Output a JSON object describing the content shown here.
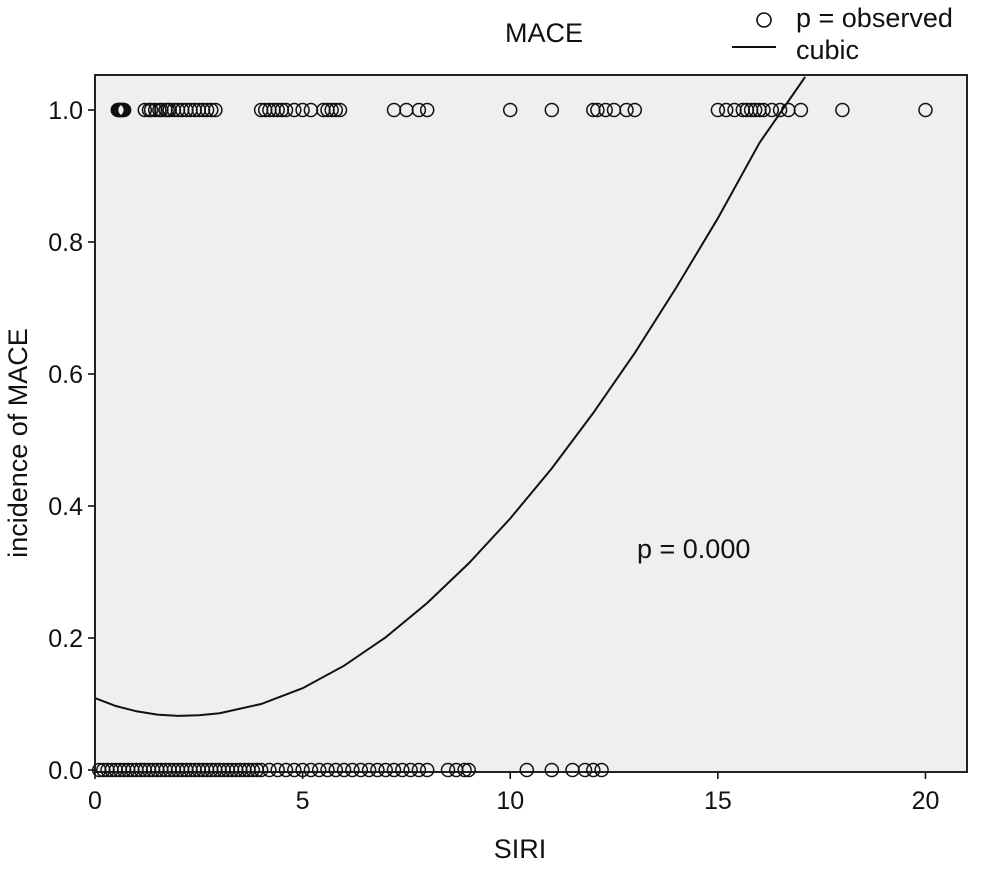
{
  "chart_data": {
    "type": "scatter",
    "title": "MACE",
    "xlabel": "SIRI",
    "ylabel": "incidence of MACE",
    "xlim": [
      0,
      21
    ],
    "ylim": [
      0,
      1.05
    ],
    "x_ticks": [
      0,
      5,
      10,
      15,
      20
    ],
    "x_tick_labels": [
      "0",
      "5",
      "10",
      "15",
      "20"
    ],
    "y_ticks": [
      0.0,
      0.2,
      0.4,
      0.6,
      0.8,
      1.0
    ],
    "y_tick_labels": [
      "0.0",
      "0.2",
      "0.4",
      "0.6",
      "0.8",
      "1.0"
    ],
    "grid": false,
    "legend_position": "top-right",
    "plot_background": "#efefef",
    "annotation": "p = 0.000",
    "series": [
      {
        "name": "p = observed",
        "kind": "points",
        "marker": "open-circle",
        "points_y1": [
          0.55,
          0.58,
          0.6,
          0.62,
          0.65,
          0.68,
          0.7,
          1.2,
          1.3,
          1.35,
          1.45,
          1.55,
          1.6,
          1.7,
          1.75,
          1.8,
          1.9,
          2.0,
          2.1,
          2.2,
          2.3,
          2.4,
          2.5,
          2.6,
          2.7,
          2.8,
          2.9,
          4.0,
          4.1,
          4.2,
          4.3,
          4.4,
          4.5,
          4.6,
          4.8,
          5.0,
          5.2,
          5.5,
          5.6,
          5.7,
          5.8,
          5.9,
          7.2,
          7.5,
          7.8,
          8.0,
          10.0,
          11.0,
          12.0,
          12.1,
          12.3,
          12.5,
          12.8,
          13.0,
          15.0,
          15.2,
          15.4,
          15.6,
          15.7,
          15.8,
          15.9,
          16.0,
          16.1,
          16.3,
          16.5,
          16.7,
          17.0,
          18.0,
          20.0
        ],
        "points_y0": [
          0.1,
          0.2,
          0.3,
          0.4,
          0.5,
          0.6,
          0.7,
          0.8,
          0.9,
          1.0,
          1.1,
          1.2,
          1.3,
          1.4,
          1.5,
          1.6,
          1.7,
          1.8,
          1.9,
          2.0,
          2.1,
          2.2,
          2.3,
          2.4,
          2.5,
          2.6,
          2.7,
          2.8,
          2.9,
          3.0,
          3.1,
          3.2,
          3.3,
          3.4,
          3.5,
          3.6,
          3.7,
          3.8,
          3.9,
          4.0,
          4.2,
          4.4,
          4.6,
          4.8,
          5.0,
          5.2,
          5.4,
          5.6,
          5.8,
          6.0,
          6.2,
          6.4,
          6.6,
          6.8,
          7.0,
          7.2,
          7.4,
          7.6,
          7.8,
          8.0,
          8.5,
          8.7,
          8.9,
          9.0,
          10.4,
          11.0,
          11.5,
          11.8,
          12.0,
          12.2
        ]
      },
      {
        "name": "cubic",
        "kind": "line",
        "x": [
          0,
          0.5,
          1,
          1.5,
          2,
          2.5,
          3,
          4,
          5,
          6,
          7,
          8,
          9,
          10,
          11,
          12,
          13,
          14,
          15,
          16,
          17.1
        ],
        "y": [
          0.109,
          0.097,
          0.089,
          0.084,
          0.082,
          0.083,
          0.086,
          0.1,
          0.124,
          0.158,
          0.201,
          0.253,
          0.313,
          0.381,
          0.457,
          0.541,
          0.632,
          0.731,
          0.836,
          0.95,
          1.05
        ]
      }
    ]
  }
}
